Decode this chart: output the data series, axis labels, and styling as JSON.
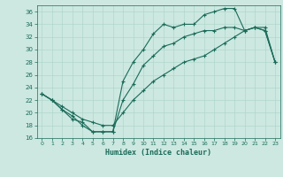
{
  "title": "",
  "xlabel": "Humidex (Indice chaleur)",
  "bg_color": "#cce8e0",
  "line_color": "#1a6b5a",
  "grid_color": "#aad4c8",
  "xlim": [
    -0.5,
    23.5
  ],
  "ylim": [
    16,
    37
  ],
  "xticks": [
    0,
    1,
    2,
    3,
    4,
    5,
    6,
    7,
    8,
    9,
    10,
    11,
    12,
    13,
    14,
    15,
    16,
    17,
    18,
    19,
    20,
    21,
    22,
    23
  ],
  "yticks": [
    16,
    18,
    20,
    22,
    24,
    26,
    28,
    30,
    32,
    34,
    36
  ],
  "line1": {
    "x": [
      0,
      1,
      2,
      3,
      4,
      5,
      6,
      7,
      8,
      9,
      10,
      11,
      12,
      13,
      14,
      15,
      16,
      17,
      18,
      19,
      20,
      21,
      22,
      23
    ],
    "y": [
      23,
      22,
      20.5,
      19.5,
      18,
      17,
      17,
      17,
      25,
      28,
      30,
      32.5,
      34,
      33.5,
      34,
      34,
      35.5,
      36,
      36.5,
      36.5,
      33,
      33.5,
      33.5,
      28
    ]
  },
  "line2": {
    "x": [
      0,
      1,
      2,
      3,
      4,
      5,
      6,
      7,
      8,
      9,
      10,
      11,
      12,
      13,
      14,
      15,
      16,
      17,
      18,
      19,
      20,
      21,
      22,
      23
    ],
    "y": [
      23,
      22,
      20.5,
      19,
      18.5,
      17,
      17,
      17,
      22,
      24.5,
      27.5,
      29,
      30.5,
      31,
      32,
      32.5,
      33,
      33,
      33.5,
      33.5,
      33,
      33.5,
      33,
      28
    ]
  },
  "line3": {
    "x": [
      0,
      1,
      2,
      3,
      4,
      5,
      6,
      7,
      8,
      9,
      10,
      11,
      12,
      13,
      14,
      15,
      16,
      17,
      18,
      19,
      20,
      21,
      22,
      23
    ],
    "y": [
      23,
      22,
      21,
      20,
      19,
      18.5,
      18,
      18,
      20,
      22,
      23.5,
      25,
      26,
      27,
      28,
      28.5,
      29,
      30,
      31,
      32,
      33,
      33.5,
      33,
      28
    ]
  }
}
